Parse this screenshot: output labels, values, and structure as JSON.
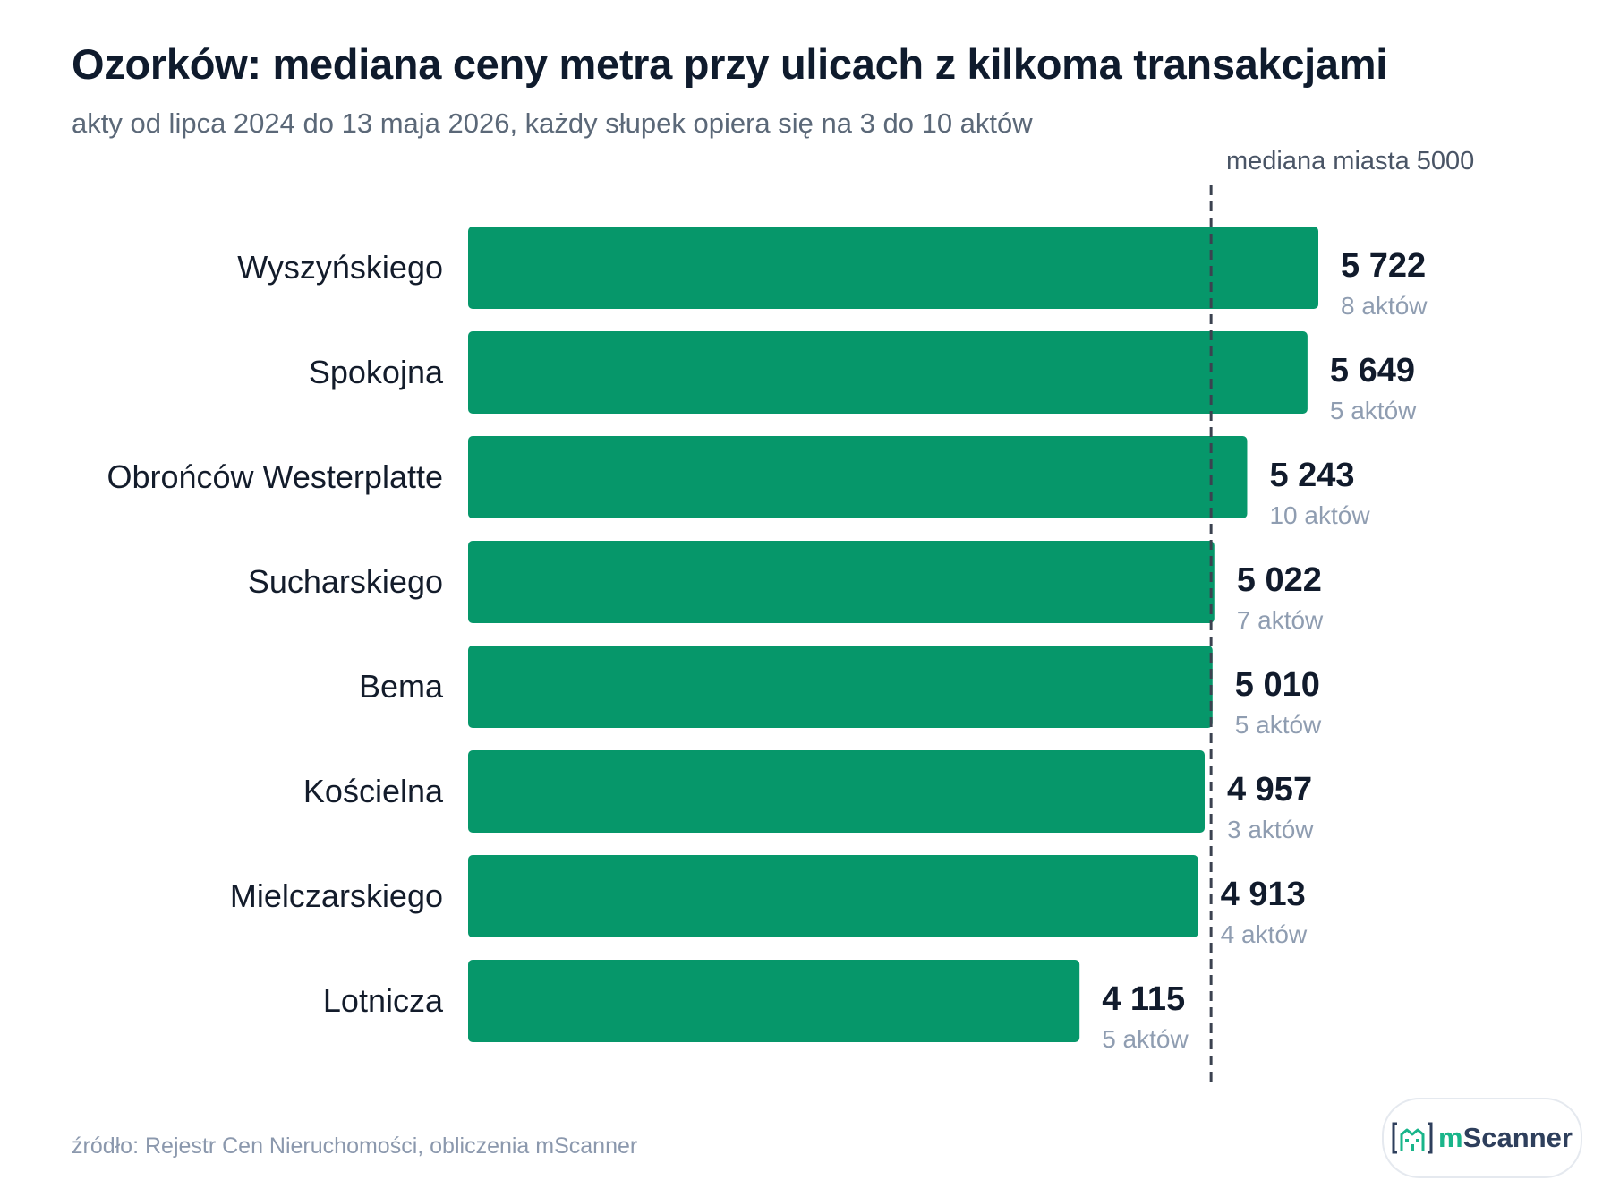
{
  "header": {
    "title": "Ozorków: mediana ceny metra przy ulicach z kilkoma transakcjami",
    "subtitle": "akty od lipca 2024 do 13 maja 2026, każdy słupek opiera się na 3 do 10 aktów"
  },
  "footer": {
    "source": "źródło: Rejestr Cen Nieruchomości, obliczenia mScanner"
  },
  "logo": {
    "prefix": "m",
    "name": "Scanner",
    "icon": "building-bracket-icon",
    "prefix_color": "#19b58a",
    "name_color": "#2e3f5c"
  },
  "chart_data": {
    "type": "bar",
    "orientation": "horizontal",
    "bar_color": "#06976a",
    "categories": [
      "Wyszyńskiego",
      "Spokojna",
      "Obrońców Westerplatte",
      "Sucharskiego",
      "Bema",
      "Kościelna",
      "Mielczarskiego",
      "Lotnicza"
    ],
    "values": [
      5722,
      5649,
      5243,
      5022,
      5010,
      4957,
      4913,
      4115
    ],
    "value_labels": [
      "5 722",
      "5 649",
      "5 243",
      "5 022",
      "5 010",
      "4 957",
      "4 913",
      "4 115"
    ],
    "count_labels": [
      "8 aktów",
      "5 aktów",
      "10 aktów",
      "7 aktów",
      "5 aktów",
      "3 aktów",
      "4 aktów",
      "5 aktów"
    ],
    "reference_line": {
      "value": 5000,
      "label": "mediana miasta 5000",
      "style": "dashed"
    },
    "xlim": [
      0,
      5722
    ],
    "grid": false
  }
}
